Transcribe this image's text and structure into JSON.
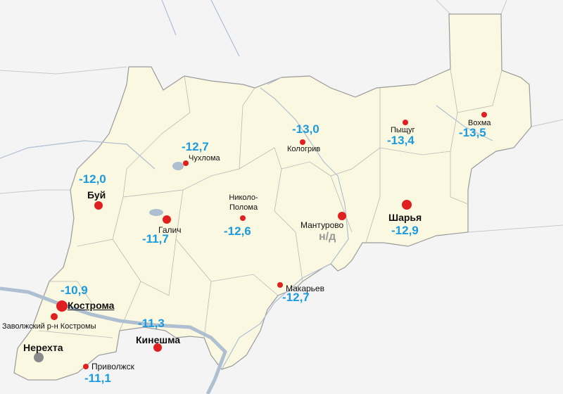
{
  "cities": [
    {
      "name": "Кострома",
      "value": "-10,9"
    },
    {
      "name": "Заволжский р-н Костромы"
    },
    {
      "name": "Нерехта"
    },
    {
      "name": "Приволжск",
      "value": "-11,1"
    },
    {
      "name": "Кинешма",
      "value": "-11,3"
    },
    {
      "name": "Буй",
      "value": "-12,0"
    },
    {
      "name": "Галич",
      "value": "-11,7"
    },
    {
      "name": "Чухлома",
      "value": "-12,7"
    },
    {
      "name": "Николо-Полома",
      "value": "-12,6"
    },
    {
      "name": "Кологрив",
      "value": "-13,0"
    },
    {
      "name": "Мантурово",
      "value": "н/д"
    },
    {
      "name": "Макарьев",
      "value": "-12,7"
    },
    {
      "name": "Шарья",
      "value": "-12,9"
    },
    {
      "name": "Пыщуг",
      "value": "-13,4"
    },
    {
      "name": "Вохма",
      "value": "-13,5"
    }
  ]
}
